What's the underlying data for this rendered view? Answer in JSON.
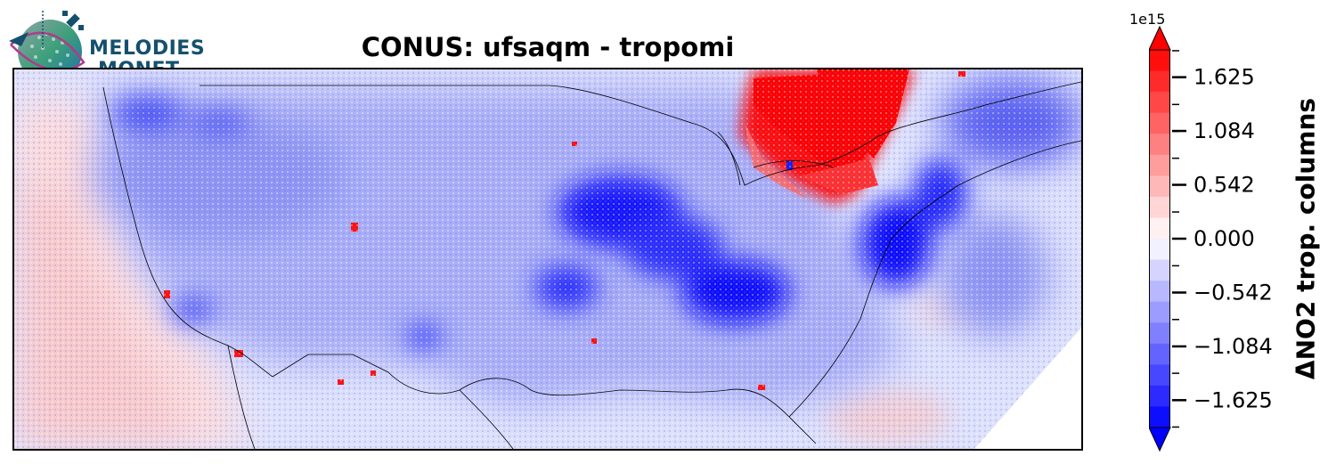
{
  "title": "CONUS: ufsaqm - tropomi",
  "logo": {
    "line1": "MELODIES",
    "line2": "MONET",
    "color": "#14506e"
  },
  "colorbar": {
    "exponent_label": "1e15",
    "label": "ΔNO2 trop. columns",
    "min": -1.9,
    "max": 1.9,
    "ticks": [
      "−1.625",
      "−1.084",
      "−0.542",
      "0.000",
      "0.542",
      "1.084",
      "1.625"
    ],
    "tick_values": [
      -1.625,
      -1.084,
      -0.542,
      0.0,
      0.542,
      1.084,
      1.625
    ],
    "extend": "both",
    "colors": {
      "negative_max": "#0000ff",
      "neutral": "#ffffff",
      "positive_max": "#ff0000"
    }
  },
  "map": {
    "region": "CONUS",
    "background_color": "#dfe3fb"
  }
}
